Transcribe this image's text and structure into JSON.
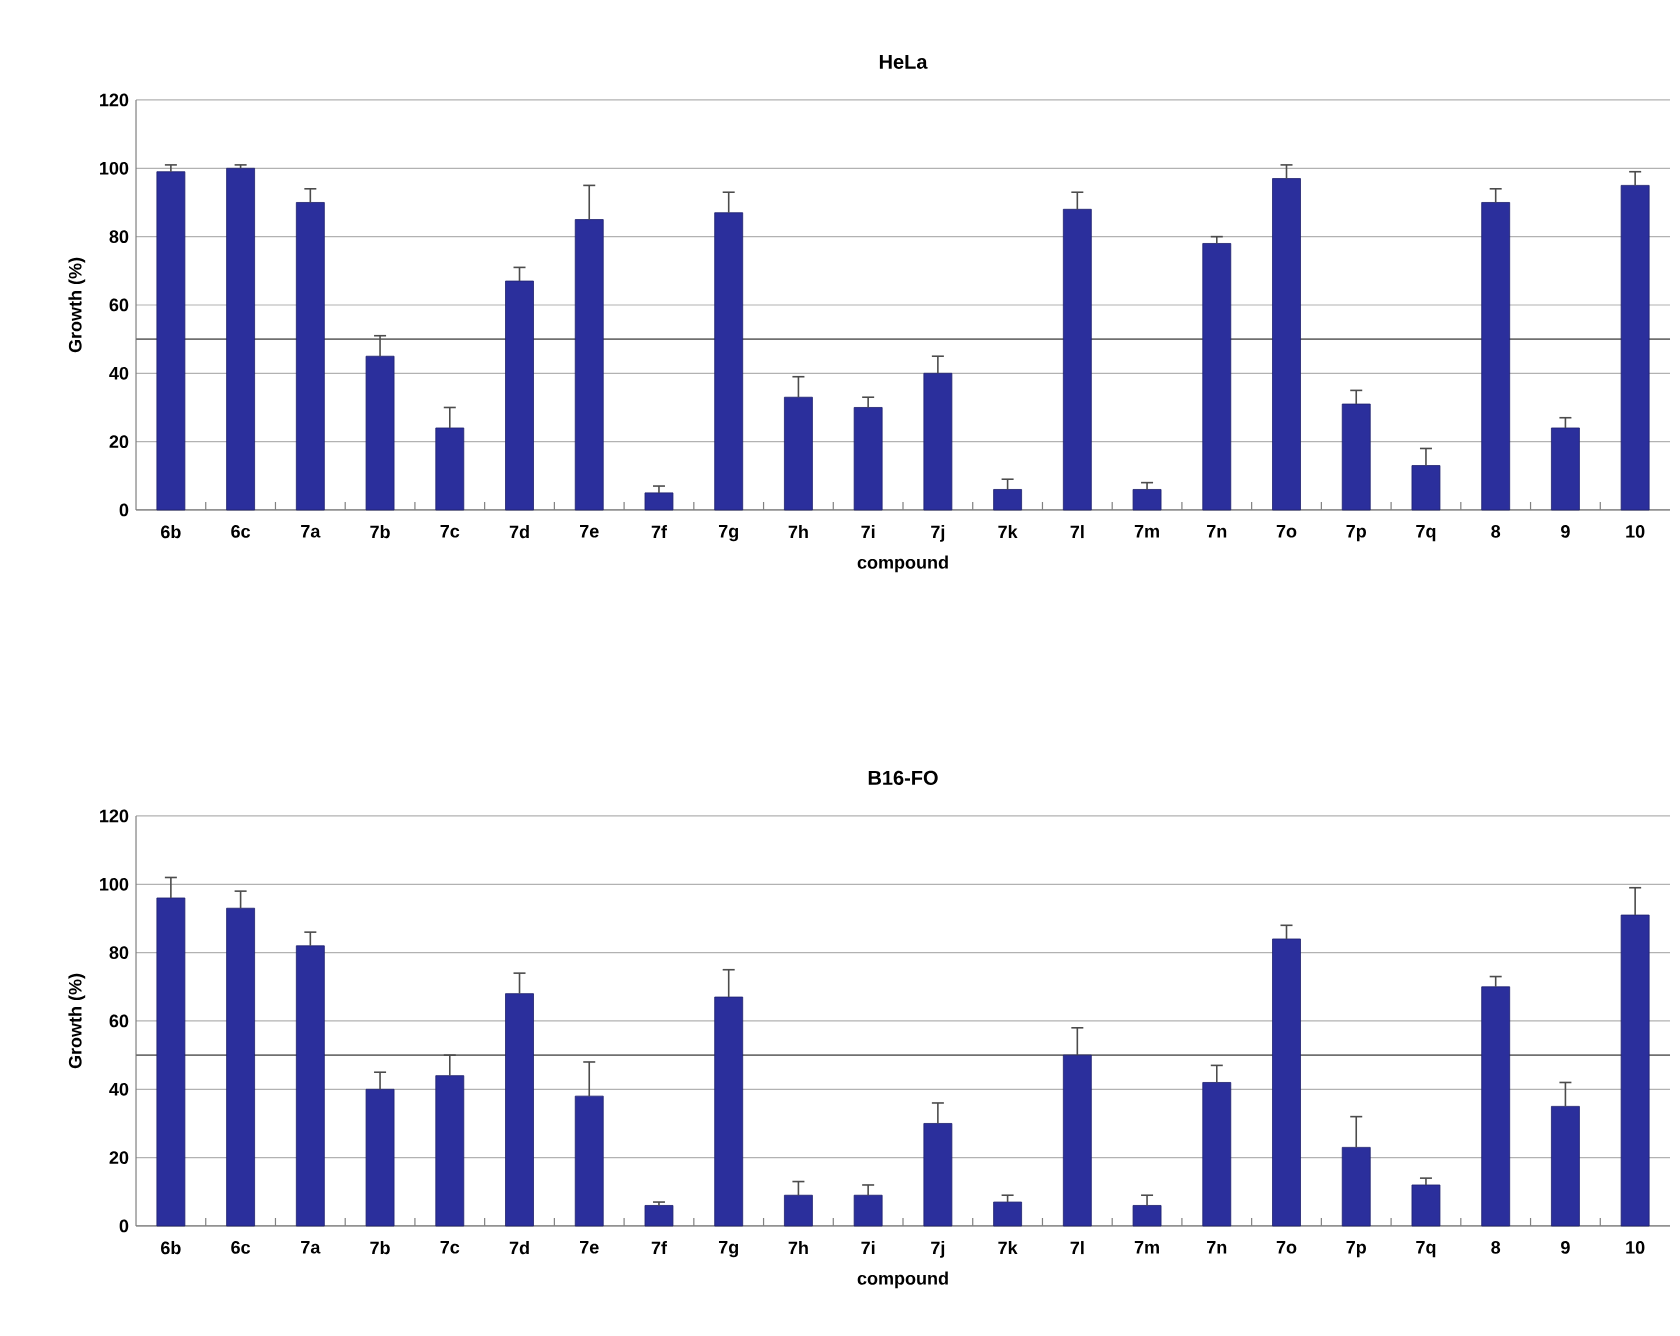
{
  "chart_data": [
    {
      "type": "bar",
      "title": "HeLa",
      "xlabel": "compound",
      "ylabel": "Growth (%)",
      "categories": [
        "6b",
        "6c",
        "7a",
        "7b",
        "7c",
        "7d",
        "7e",
        "7f",
        "7g",
        "7h",
        "7i",
        "7j",
        "7k",
        "7l",
        "7m",
        "7n",
        "7o",
        "7p",
        "7q",
        "8",
        "9",
        "10"
      ],
      "values": [
        99,
        100,
        90,
        45,
        24,
        67,
        85,
        5,
        87,
        33,
        30,
        40,
        6,
        88,
        6,
        78,
        97,
        31,
        13,
        90,
        24,
        95
      ],
      "errors": [
        2,
        1,
        4,
        6,
        6,
        4,
        10,
        2,
        6,
        6,
        3,
        5,
        3,
        5,
        2,
        2,
        4,
        4,
        5,
        4,
        3,
        4
      ],
      "color": "#2b2f9c",
      "ylim": [
        0,
        120
      ],
      "yticks": [
        0,
        20,
        40,
        60,
        80,
        100,
        120
      ],
      "grid": "y",
      "ref_lines": [
        {
          "axis": "y",
          "value": 50,
          "color": "#707070"
        }
      ]
    },
    {
      "type": "bar",
      "title": "B16-FO",
      "xlabel": "compound",
      "ylabel": "Growth (%)",
      "categories": [
        "6b",
        "6c",
        "7a",
        "7b",
        "7c",
        "7d",
        "7e",
        "7f",
        "7g",
        "7h",
        "7i",
        "7j",
        "7k",
        "7l",
        "7m",
        "7n",
        "7o",
        "7p",
        "7q",
        "8",
        "9",
        "10"
      ],
      "values": [
        96,
        93,
        82,
        40,
        44,
        68,
        38,
        6,
        67,
        9,
        9,
        30,
        7,
        50,
        6,
        42,
        84,
        23,
        12,
        70,
        35,
        91
      ],
      "errors": [
        6,
        5,
        4,
        5,
        6,
        6,
        10,
        1,
        8,
        4,
        3,
        6,
        2,
        8,
        3,
        5,
        4,
        9,
        2,
        3,
        7,
        8
      ],
      "color": "#2b2f9c",
      "ylim": [
        0,
        120
      ],
      "yticks": [
        0,
        20,
        40,
        60,
        80,
        100,
        120
      ],
      "grid": "y",
      "ref_lines": [
        {
          "axis": "y",
          "value": 50,
          "color": "#707070"
        }
      ]
    }
  ]
}
